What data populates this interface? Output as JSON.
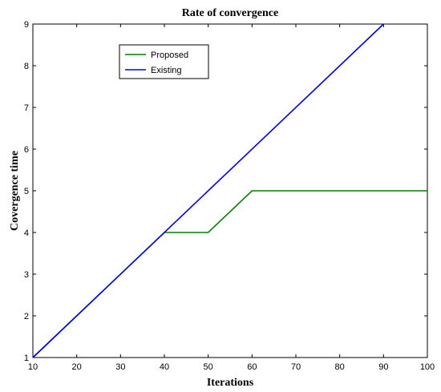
{
  "chart_data": {
    "type": "line",
    "title": "Rate of convergence",
    "xlabel": "Iterations",
    "ylabel": "Covergence time",
    "xlim": [
      10,
      100
    ],
    "ylim": [
      1,
      9
    ],
    "xticks": [
      "10",
      "20",
      "30",
      "40",
      "50",
      "60",
      "70",
      "80",
      "90",
      "100"
    ],
    "yticks": [
      "1",
      "2",
      "3",
      "4",
      "5",
      "6",
      "7",
      "8",
      "9"
    ],
    "grid": false,
    "legend_position": "top-left",
    "series": [
      {
        "name": "Proposed",
        "color": "#008000",
        "x": [
          10,
          40,
          50,
          60,
          100
        ],
        "y": [
          1,
          4,
          4,
          5,
          5
        ]
      },
      {
        "name": "Existing",
        "color": "#0000ff",
        "x": [
          10,
          90
        ],
        "y": [
          1,
          9
        ]
      }
    ]
  }
}
